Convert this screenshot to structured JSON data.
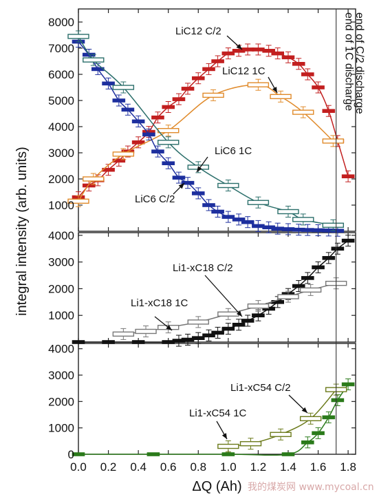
{
  "chart_data": [
    {
      "type": "scatter",
      "panel": "top",
      "ylim": [
        0,
        8500
      ],
      "yticks": [
        "1000",
        "2000",
        "3000",
        "4000",
        "5000",
        "6000",
        "7000",
        "8000"
      ],
      "series": [
        {
          "name": "LiC12 C/2",
          "color": "#c21f1f",
          "fit": true,
          "x": [
            0.0,
            0.07,
            0.13,
            0.2,
            0.27,
            0.33,
            0.4,
            0.47,
            0.53,
            0.6,
            0.67,
            0.73,
            0.8,
            0.87,
            0.93,
            1.0,
            1.07,
            1.13,
            1.2,
            1.27,
            1.33,
            1.4,
            1.47,
            1.53,
            1.6,
            1.67,
            1.73,
            1.8
          ],
          "y": [
            1300,
            1750,
            1950,
            2350,
            2700,
            3050,
            3400,
            3800,
            4350,
            4750,
            5050,
            5450,
            5850,
            6200,
            6500,
            6800,
            6900,
            6950,
            6950,
            6900,
            6800,
            6650,
            6400,
            6000,
            5500,
            4600,
            3450,
            2100
          ]
        },
        {
          "name": "LiC12 1C",
          "color": "#e08a2a",
          "fit": true,
          "x": [
            0.0,
            0.1,
            0.3,
            0.6,
            0.9,
            1.2,
            1.35,
            1.5,
            1.7
          ],
          "y": [
            1150,
            2000,
            2950,
            3850,
            5200,
            5600,
            5150,
            4550,
            3450
          ]
        },
        {
          "name": "LiC6 C/2",
          "color": "#1d2f9e",
          "fit": true,
          "x": [
            0.0,
            0.07,
            0.13,
            0.2,
            0.27,
            0.33,
            0.4,
            0.47,
            0.53,
            0.6,
            0.67,
            0.73,
            0.8,
            0.87,
            0.93,
            1.0,
            1.07,
            1.13,
            1.2,
            1.27,
            1.33,
            1.4,
            1.47,
            1.53,
            1.6,
            1.67,
            1.73
          ],
          "y": [
            7250,
            6750,
            6200,
            5650,
            5000,
            4650,
            4200,
            3700,
            3050,
            2600,
            2050,
            1850,
            1450,
            1000,
            750,
            550,
            450,
            350,
            200,
            150,
            100,
            80,
            60,
            50,
            40,
            30,
            20
          ]
        },
        {
          "name": "LiC6 1C",
          "color": "#2a6e6a",
          "fit": true,
          "x": [
            0.0,
            0.1,
            0.3,
            0.6,
            0.8,
            1.0,
            1.2,
            1.4,
            1.5,
            1.7
          ],
          "y": [
            7450,
            6550,
            5500,
            3400,
            2450,
            1750,
            1100,
            750,
            450,
            230
          ]
        }
      ],
      "annotations": [
        "LiC12 C/2",
        "LiC12 1C",
        "LiC6 1C",
        "LiC6 C/2",
        "end of 1C discharge",
        "end of C/2 discharge"
      ]
    },
    {
      "type": "scatter",
      "panel": "middle",
      "ylim": [
        0,
        4100
      ],
      "yticks": [
        "1000",
        "2000",
        "3000",
        "4000"
      ],
      "series": [
        {
          "name": "Li1-xC18 C/2",
          "color": "#111111",
          "fit": true,
          "x": [
            0.0,
            0.2,
            0.4,
            0.6,
            0.67,
            0.73,
            0.8,
            0.87,
            0.93,
            1.0,
            1.07,
            1.13,
            1.2,
            1.27,
            1.33,
            1.4,
            1.47,
            1.53,
            1.6,
            1.67,
            1.73,
            1.8
          ],
          "y": [
            0,
            0,
            0,
            0,
            50,
            90,
            150,
            250,
            350,
            500,
            650,
            800,
            1000,
            1250,
            1500,
            1800,
            2100,
            2400,
            2800,
            3150,
            3500,
            3800
          ]
        },
        {
          "name": "Li1-xC18 1C",
          "color": "#777777",
          "fit": true,
          "x": [
            0.3,
            0.45,
            0.6,
            0.8,
            1.0,
            1.2,
            1.4,
            1.55,
            1.72
          ],
          "y": [
            300,
            400,
            550,
            750,
            1050,
            1350,
            1700,
            1950,
            2200
          ]
        }
      ],
      "annotations": [
        "Li1-xC18 C/2",
        "Li1-xC18 1C"
      ]
    },
    {
      "type": "scatter",
      "panel": "bottom",
      "ylim": [
        0,
        4200
      ],
      "yticks": [
        "0",
        "1000",
        "2000",
        "3000",
        "4000"
      ],
      "xlim": [
        0,
        1.85
      ],
      "xticks": [
        "0.0",
        "0.2",
        "0.4",
        "0.6",
        "0.8",
        "1.0",
        "1.2",
        "1.4",
        "1.6",
        "1.8"
      ],
      "xlabel": "ΔQ (Ah)",
      "ylabel": "integral intensity (arb. units)",
      "series": [
        {
          "name": "Li1-xC54 C/2",
          "color": "#2a7a1a",
          "fit": true,
          "x": [
            0.0,
            0.5,
            1.0,
            1.4,
            1.53,
            1.6,
            1.67,
            1.73,
            1.8
          ],
          "y": [
            0,
            0,
            0,
            0,
            450,
            800,
            1400,
            2050,
            2650
          ]
        },
        {
          "name": "Li1-xC54 1C",
          "color": "#6b7a1a",
          "fit": true,
          "x": [
            1.0,
            1.15,
            1.35,
            1.55,
            1.72
          ],
          "y": [
            300,
            400,
            750,
            1350,
            2450
          ]
        }
      ],
      "annotations": [
        "Li1-xC54 C/2",
        "Li1-xC54 1C"
      ]
    }
  ],
  "markers": {
    "end_1c_x": 1.72,
    "end_c2_x": 1.8
  },
  "watermark": "我的煤炭网 www.mycoal.cn"
}
